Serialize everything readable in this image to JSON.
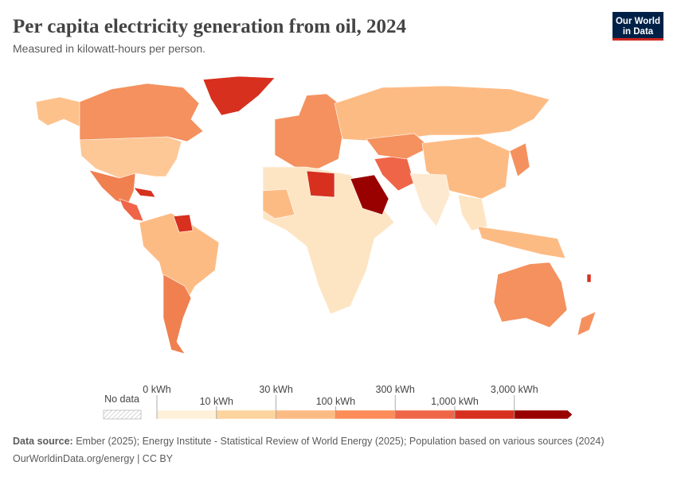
{
  "header": {
    "title": "Per capita electricity generation from oil, 2024",
    "subtitle": "Measured in kilowatt-hours per person."
  },
  "logo": {
    "line1": "Our World",
    "line2": "in Data"
  },
  "legend": {
    "no_data": "No data",
    "ticks": [
      {
        "value": 0,
        "label": "0 kWh"
      },
      {
        "value": 10,
        "label": "10 kWh"
      },
      {
        "value": 30,
        "label": "30 kWh"
      },
      {
        "value": 100,
        "label": "100 kWh"
      },
      {
        "value": 300,
        "label": "300 kWh"
      },
      {
        "value": 1000,
        "label": "1,000 kWh"
      },
      {
        "value": 3000,
        "label": "3,000 kWh"
      }
    ],
    "colors": [
      "#fef0d9",
      "#fdd49e",
      "#fdbb84",
      "#fc8d59",
      "#ef6548",
      "#d7301f",
      "#990000"
    ]
  },
  "footer": {
    "source_label": "Data source:",
    "source": "Ember (2025); Energy Institute - Statistical Review of World Energy (2025); Population based on various sources (2024)",
    "link": "OurWorldinData.org/energy | CC BY"
  }
}
